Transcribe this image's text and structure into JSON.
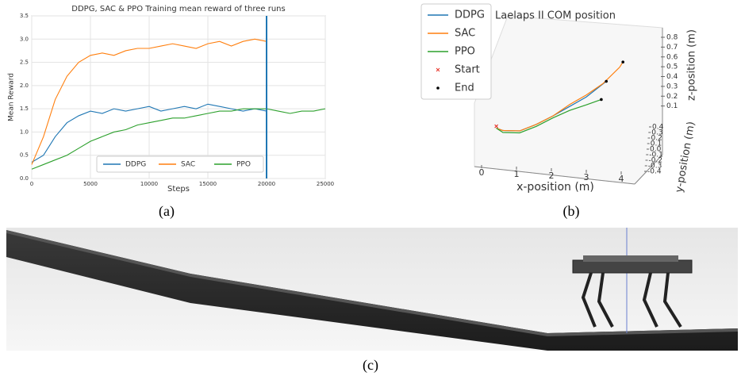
{
  "chart_data": [
    {
      "type": "line",
      "title": "DDPG, SAC & PPO Training mean reward of three runs",
      "x_label": "Steps",
      "y_label": "Mean Reward",
      "x": [
        0,
        1000,
        2000,
        3000,
        4000,
        5000,
        6000,
        7000,
        8000,
        9000,
        10000,
        11000,
        12000,
        13000,
        14000,
        15000,
        16000,
        17000,
        18000,
        19000,
        20000,
        21000,
        22000,
        23000,
        24000,
        25000
      ],
      "series": [
        {
          "name": "DDPG",
          "color": "#1f77b4",
          "values": [
            0.35,
            0.5,
            0.9,
            1.2,
            1.35,
            1.45,
            1.4,
            1.5,
            1.45,
            1.5,
            1.55,
            1.45,
            1.5,
            1.55,
            1.5,
            1.6,
            1.55,
            1.5,
            1.45,
            1.5,
            1.45,
            null,
            null,
            null,
            null,
            null
          ]
        },
        {
          "name": "SAC",
          "color": "#ff7f0e",
          "values": [
            0.3,
            0.9,
            1.7,
            2.2,
            2.5,
            2.65,
            2.7,
            2.65,
            2.75,
            2.8,
            2.8,
            2.85,
            2.9,
            2.85,
            2.8,
            2.9,
            2.95,
            2.85,
            2.95,
            3.0,
            2.95,
            null,
            null,
            null,
            null,
            null
          ]
        },
        {
          "name": "PPO",
          "color": "#2ca02c",
          "values": [
            0.2,
            0.3,
            0.4,
            0.5,
            0.65,
            0.8,
            0.9,
            1.0,
            1.05,
            1.15,
            1.2,
            1.25,
            1.3,
            1.3,
            1.35,
            1.4,
            1.45,
            1.45,
            1.5,
            1.5,
            1.5,
            1.45,
            1.4,
            1.45,
            1.45,
            1.5
          ]
        }
      ],
      "xlim": [
        0,
        25000
      ],
      "xticks": [
        0,
        5000,
        10000,
        15000,
        20000,
        25000
      ],
      "ylim": [
        0,
        3.5
      ],
      "yticks": [
        {
          "value": 0,
          "label": "0.0"
        },
        0.5,
        {
          "value": 1,
          "label": "1.0"
        },
        1.5,
        {
          "value": 2,
          "label": "2.0"
        },
        2.5,
        {
          "value": 3,
          "label": "3.0"
        },
        3.5
      ],
      "vline": 20000,
      "vline_color": "#1f77b4",
      "grid": true,
      "legend": "bottom"
    },
    {
      "type": "line3d",
      "title": "Laelaps II COM position",
      "x_label": "x-position (m)",
      "y_label": "y-position (m)",
      "z_label": "z-position (m)",
      "series": [
        {
          "name": "DDPG",
          "color": "#1f77b4",
          "x": [
            0.3,
            0.5,
            1,
            1.5,
            2,
            2.5,
            3,
            3.6
          ],
          "z": [
            0.05,
            0.02,
            0.0,
            0.05,
            0.12,
            0.2,
            0.28,
            0.42
          ]
        },
        {
          "name": "SAC",
          "color": "#ff7f0e",
          "x": [
            0.3,
            0.5,
            1,
            1.5,
            2,
            2.5,
            3,
            3.5,
            4,
            4.1
          ],
          "z": [
            0.05,
            0.02,
            0.0,
            0.05,
            0.12,
            0.22,
            0.3,
            0.4,
            0.55,
            0.6
          ]
        },
        {
          "name": "PPO",
          "color": "#2ca02c",
          "x": [
            0.3,
            0.5,
            1,
            1.5,
            2,
            2.5,
            3,
            3.45
          ],
          "z": [
            0.05,
            0.0,
            -0.02,
            0.03,
            0.1,
            0.16,
            0.2,
            0.24
          ]
        },
        {
          "name": "Start",
          "color": "#e8352a",
          "marker": "x",
          "x": [
            0.3
          ],
          "z": [
            0.07
          ]
        },
        {
          "name": "End",
          "color": "#000000",
          "marker": "dot",
          "x": [
            4.1,
            3.6,
            3.45
          ],
          "z": [
            0.6,
            0.42,
            0.24
          ]
        }
      ],
      "xlim": [
        0,
        4.5
      ],
      "xticks": [
        0,
        1,
        2,
        3,
        4
      ],
      "ylim": [
        -0.4,
        0.4
      ],
      "yticks": [
        0.4,
        0.3,
        0.2,
        0.1,
        {
          "value": 0,
          "label": "0.0"
        },
        -0.1,
        -0.2,
        -0.3,
        -0.4
      ],
      "zlim": [
        0,
        0.8
      ],
      "zticks": [
        0.8,
        0.7,
        0.6,
        0.5,
        0.4,
        0.3,
        0.2,
        0.1
      ],
      "legend": "upper left"
    }
  ],
  "captions": [
    "(a)",
    "(b)",
    "(c)"
  ]
}
